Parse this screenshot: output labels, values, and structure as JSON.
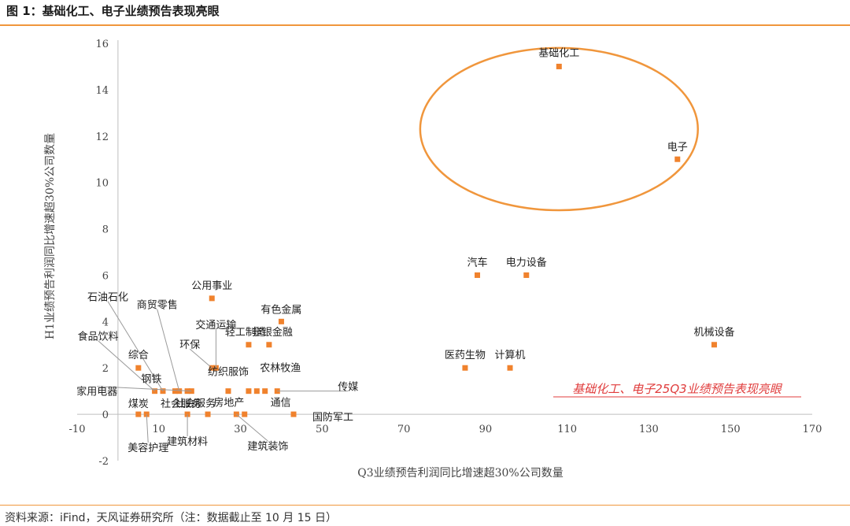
{
  "header": {
    "title": "图 1：基础化工、电子业绩预告表现亮眼"
  },
  "footer": {
    "source": "资料来源：iFind，天风证券研究所（注：数据截止至 10 月 15 日）"
  },
  "colors": {
    "accent": "#F0963C",
    "marker": "#F0822D",
    "annotation": "#E03C3C"
  },
  "chart_data": {
    "type": "scatter",
    "title": "",
    "xlabel": "Q3业绩预告利润同比增速超30%公司数量",
    "ylabel": "H1业绩预告利润同比增速超30%公司数量",
    "xlim": [
      -10,
      170
    ],
    "ylim": [
      -2,
      16
    ],
    "xticks": [
      -10,
      10,
      30,
      50,
      70,
      90,
      110,
      130,
      150,
      170
    ],
    "yticks": [
      -2,
      0,
      2,
      4,
      6,
      8,
      10,
      12,
      14,
      16
    ],
    "grid": false,
    "annotation": "基础化工、电子25Q3业绩预告表现亮眼",
    "highlight_ellipse": {
      "center": [
        108,
        12.3
      ],
      "radius_x": 34,
      "radius_y": 3.5
    },
    "points": [
      {
        "label": "基础化工",
        "x": 108,
        "y": 15
      },
      {
        "label": "电子",
        "x": 137,
        "y": 11
      },
      {
        "label": "汽车",
        "x": 88,
        "y": 6
      },
      {
        "label": "电力设备",
        "x": 100,
        "y": 6
      },
      {
        "label": "机械设备",
        "x": 146,
        "y": 3
      },
      {
        "label": "医药生物",
        "x": 85,
        "y": 2
      },
      {
        "label": "计算机",
        "x": 96,
        "y": 2
      },
      {
        "label": "公用事业",
        "x": 23,
        "y": 5
      },
      {
        "label": "有色金属",
        "x": 40,
        "y": 4
      },
      {
        "label": "轻工制造",
        "x": 32,
        "y": 3
      },
      {
        "label": "非银金融",
        "x": 37,
        "y": 3
      },
      {
        "label": "交通运输",
        "x": 24,
        "y": 2
      },
      {
        "label": "环保",
        "x": 23,
        "y": 2
      },
      {
        "label": "综合",
        "x": 5,
        "y": 2
      },
      {
        "label": "食品饮料",
        "x": 9,
        "y": 1
      },
      {
        "label": "石油石化",
        "x": 11,
        "y": 1
      },
      {
        "label": "商贸零售",
        "x": 15,
        "y": 1
      },
      {
        "label": "钢铁",
        "x": 14,
        "y": 1
      },
      {
        "label": "家用电器",
        "x": 18,
        "y": 1
      },
      {
        "label": "社会服务",
        "x": 17,
        "y": 1
      },
      {
        "label": "纺织服饰",
        "x": 27,
        "y": 1
      },
      {
        "label": "农林牧渔",
        "x": 34,
        "y": 1
      },
      {
        "label": "传媒",
        "x": 39,
        "y": 1
      },
      {
        "label": "通信",
        "x": 36,
        "y": 1
      },
      {
        "label": "房地产",
        "x": 32,
        "y": 1
      },
      {
        "label": "煤炭",
        "x": 5,
        "y": 0
      },
      {
        "label": "美容护理",
        "x": 7,
        "y": 0
      },
      {
        "label": "建筑材料",
        "x": 17,
        "y": 0
      },
      {
        "label": "社会服务",
        "x": 22,
        "y": 0
      },
      {
        "label": "建筑装饰",
        "x": 29,
        "y": 0
      },
      {
        "label": "",
        "x": 31,
        "y": 0
      },
      {
        "label": "国防军工",
        "x": 43,
        "y": 0
      }
    ]
  }
}
